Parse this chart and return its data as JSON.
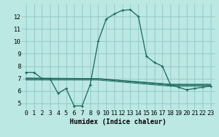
{
  "title": "",
  "xlabel": "Humidex (Indice chaleur)",
  "bg_color": "#bce8e4",
  "grid_color": "#96ccca",
  "line_color": "#1e6b60",
  "xlim": [
    -0.5,
    23.5
  ],
  "ylim": [
    4.5,
    13.0
  ],
  "yticks": [
    5,
    6,
    7,
    8,
    9,
    10,
    11,
    12
  ],
  "xticks": [
    0,
    1,
    2,
    3,
    4,
    5,
    6,
    7,
    8,
    9,
    10,
    11,
    12,
    13,
    14,
    15,
    16,
    17,
    18,
    19,
    20,
    21,
    22,
    23
  ],
  "series": [
    [
      0,
      7.5
    ],
    [
      1,
      7.5
    ],
    [
      2,
      7.0
    ],
    [
      3,
      7.0
    ],
    [
      4,
      5.8
    ],
    [
      5,
      6.2
    ],
    [
      6,
      4.8
    ],
    [
      7,
      4.8
    ],
    [
      8,
      6.5
    ],
    [
      9,
      10.0
    ],
    [
      10,
      11.8
    ],
    [
      11,
      12.2
    ],
    [
      12,
      12.5
    ],
    [
      13,
      12.55
    ],
    [
      14,
      12.0
    ],
    [
      15,
      8.8
    ],
    [
      16,
      8.3
    ],
    [
      17,
      8.0
    ],
    [
      18,
      6.5
    ],
    [
      19,
      6.3
    ],
    [
      20,
      6.1
    ],
    [
      21,
      6.2
    ],
    [
      22,
      6.3
    ],
    [
      23,
      6.4
    ]
  ],
  "flat_series": [
    [
      [
        0,
        7.0
      ],
      [
        9,
        7.0
      ],
      [
        18,
        6.55
      ],
      [
        23,
        6.55
      ]
    ],
    [
      [
        0,
        7.05
      ],
      [
        9,
        7.0
      ],
      [
        18,
        6.5
      ],
      [
        23,
        6.5
      ]
    ],
    [
      [
        0,
        6.95
      ],
      [
        9,
        6.95
      ],
      [
        18,
        6.45
      ],
      [
        23,
        6.45
      ]
    ],
    [
      [
        0,
        6.88
      ],
      [
        9,
        6.88
      ],
      [
        18,
        6.38
      ],
      [
        23,
        6.38
      ]
    ]
  ],
  "xlabel_fontsize": 7,
  "tick_fontsize": 6.5
}
